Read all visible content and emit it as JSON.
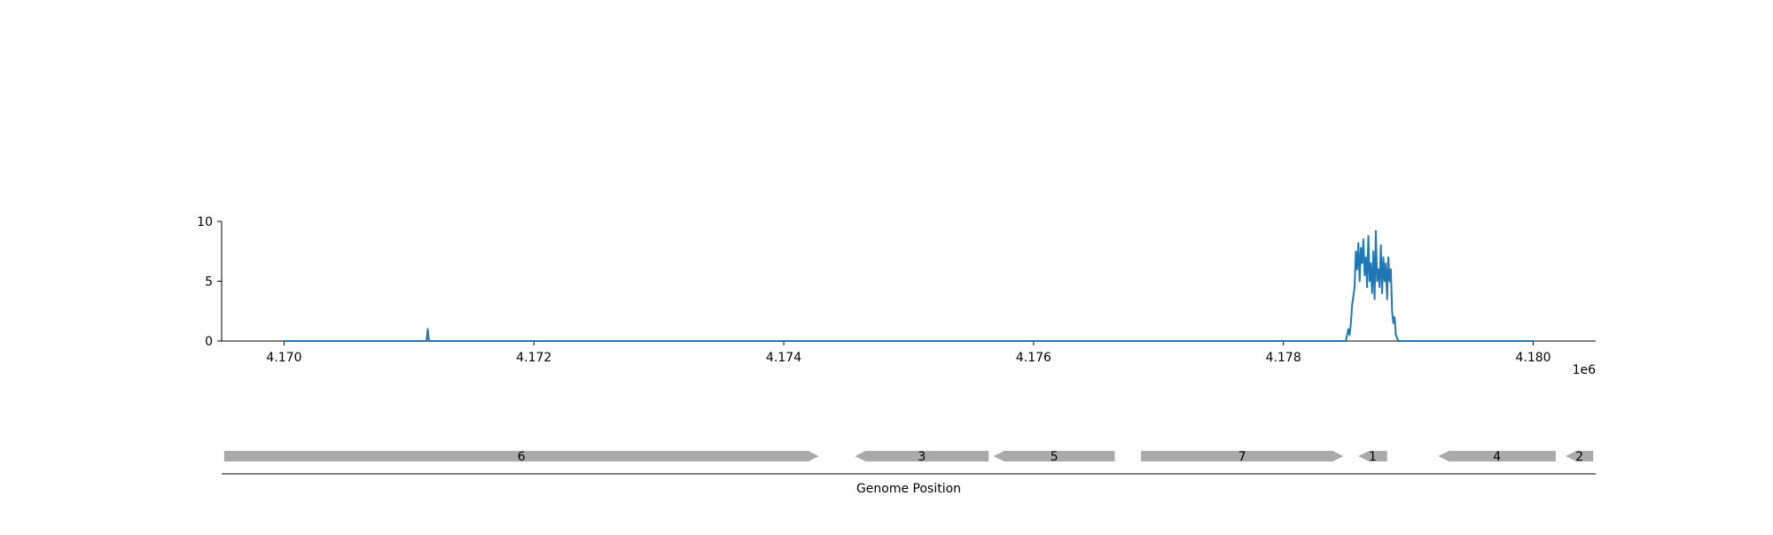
{
  "chart_data": [
    {
      "type": "line",
      "title": "",
      "xlabel": "",
      "ylabel": "",
      "xlim": [
        4169500,
        4180500
      ],
      "ylim": [
        0,
        10
      ],
      "xticks": [
        4170000,
        4172000,
        4174000,
        4176000,
        4178000,
        4180000
      ],
      "xtick_labels": [
        "4.170",
        "4.172",
        "4.174",
        "4.176",
        "4.178",
        "4.180"
      ],
      "x_offset_label": "1e6",
      "yticks": [
        0,
        5,
        10
      ],
      "ytick_labels": [
        "0",
        "5",
        "10"
      ],
      "grid": false,
      "line_color": "#1f77b4",
      "series": [
        {
          "x": [
            4170000,
            4171140,
            4171150,
            4171160,
            4178500,
            4178520,
            4178530,
            4178540,
            4178550,
            4178570,
            4178580,
            4178590,
            4178600,
            4178610,
            4178620,
            4178630,
            4178640,
            4178650,
            4178660,
            4178670,
            4178680,
            4178690,
            4178700,
            4178710,
            4178720,
            4178730,
            4178740,
            4178750,
            4178760,
            4178770,
            4178780,
            4178790,
            4178800,
            4178810,
            4178820,
            4178830,
            4178840,
            4178850,
            4178860,
            4178870,
            4178880,
            4178890,
            4178900,
            4178920,
            4180000
          ],
          "y": [
            0,
            0,
            1,
            0,
            0,
            1,
            0.5,
            1.5,
            3,
            4.5,
            7.5,
            6,
            8.2,
            5,
            7.8,
            6.5,
            8.5,
            5.5,
            7,
            4.5,
            8.8,
            5,
            6.5,
            4,
            7.5,
            3.5,
            9.2,
            5,
            6,
            4.5,
            8,
            4,
            7,
            5,
            6.5,
            3.5,
            7,
            5,
            6,
            2.5,
            1.5,
            2,
            0.5,
            0,
            0
          ]
        }
      ]
    },
    {
      "type": "gene_map",
      "xlabel": "Genome Position",
      "xlim": [
        4169500,
        4180500
      ],
      "feature_color": "#aaaaaa",
      "features": [
        {
          "label": "6",
          "start": 4169520,
          "end": 4174280,
          "strand": "+"
        },
        {
          "label": "3",
          "start": 4174570,
          "end": 4175640,
          "strand": "-"
        },
        {
          "label": "5",
          "start": 4175680,
          "end": 4176650,
          "strand": "-"
        },
        {
          "label": "7",
          "start": 4176860,
          "end": 4178480,
          "strand": "+"
        },
        {
          "label": "1",
          "start": 4178600,
          "end": 4178830,
          "strand": "-"
        },
        {
          "label": "4",
          "start": 4179240,
          "end": 4180180,
          "strand": "-"
        },
        {
          "label": "2",
          "start": 4180260,
          "end": 4180480,
          "strand": "-"
        }
      ]
    }
  ]
}
